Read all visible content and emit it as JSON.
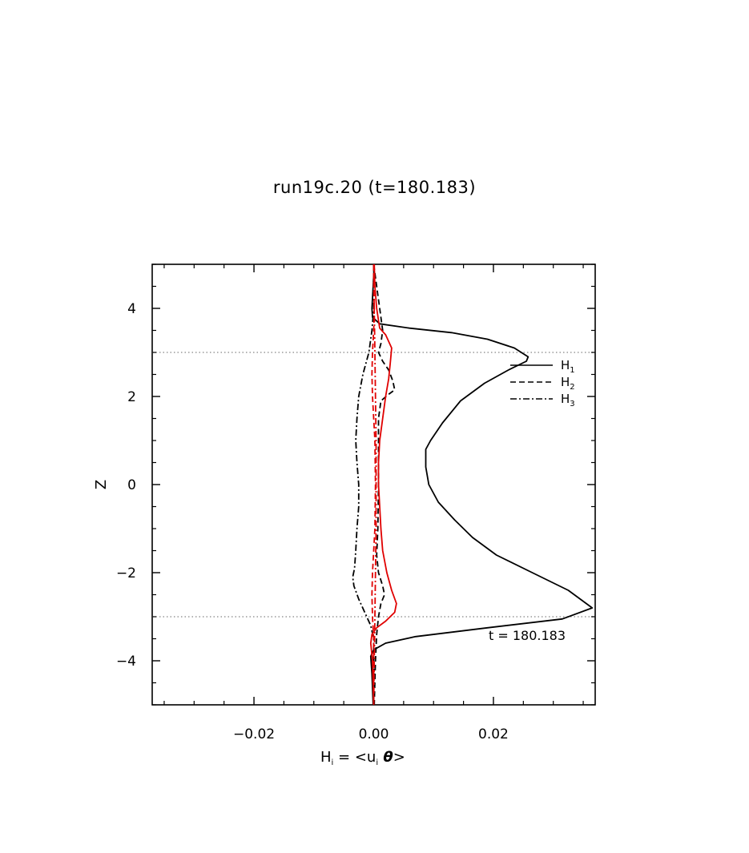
{
  "chart_data": {
    "type": "line",
    "title": "run19c.20 (t=180.183)",
    "xlabel": "H_i = <u_i θ>",
    "xlabel_parts": {
      "main": "H",
      "sub": "i",
      "rest": " = <u",
      "sub2": "i",
      "theta": " θ",
      "end": ">"
    },
    "ylabel": "Z",
    "xlim": [
      -0.037,
      0.037
    ],
    "ylim": [
      -5,
      5
    ],
    "x_ticks": [
      -0.02,
      0.0,
      0.02
    ],
    "x_tick_labels": [
      "−0.02",
      "0.00",
      "0.02"
    ],
    "y_ticks": [
      -4,
      -2,
      0,
      2,
      4
    ],
    "y_tick_labels": [
      "−4",
      "−2",
      "0",
      "2",
      "4"
    ],
    "reference_lines_z": [
      3,
      -3
    ],
    "annotation": "t = 180.183",
    "legend_placement": "upper-right inside",
    "legend": [
      {
        "label": "H",
        "sub": "1",
        "style": "solid"
      },
      {
        "label": "H",
        "sub": "2",
        "style": "dashed"
      },
      {
        "label": "H",
        "sub": "3",
        "style": "dashdot"
      }
    ],
    "series": [
      {
        "name": "H1",
        "color": "#000000",
        "style": "solid",
        "points": [
          [
            0.0001,
            5.0
          ],
          [
            -0.0001,
            4.5
          ],
          [
            -0.0003,
            4.0
          ],
          [
            -0.0002,
            3.8
          ],
          [
            0.001,
            3.65
          ],
          [
            0.006,
            3.55
          ],
          [
            0.013,
            3.45
          ],
          [
            0.019,
            3.3
          ],
          [
            0.0235,
            3.1
          ],
          [
            0.0258,
            2.9
          ],
          [
            0.0255,
            2.8
          ],
          [
            0.0225,
            2.6
          ],
          [
            0.0185,
            2.3
          ],
          [
            0.0145,
            1.9
          ],
          [
            0.0115,
            1.4
          ],
          [
            0.0095,
            1.0
          ],
          [
            0.0087,
            0.8
          ],
          [
            0.0087,
            0.4
          ],
          [
            0.0092,
            0.0
          ],
          [
            0.0108,
            -0.4
          ],
          [
            0.0135,
            -0.8
          ],
          [
            0.0165,
            -1.2
          ],
          [
            0.0205,
            -1.6
          ],
          [
            0.0265,
            -2.0
          ],
          [
            0.0325,
            -2.4
          ],
          [
            0.0365,
            -2.8
          ],
          [
            0.0315,
            -3.05
          ],
          [
            0.019,
            -3.25
          ],
          [
            0.007,
            -3.45
          ],
          [
            0.002,
            -3.6
          ],
          [
            0.0,
            -3.75
          ],
          [
            -0.0005,
            -3.9
          ],
          [
            -0.0003,
            -4.3
          ],
          [
            -0.0001,
            -5.0
          ]
        ]
      },
      {
        "name": "H2",
        "color": "#000000",
        "style": "dashed",
        "points": [
          [
            0.0,
            5.0
          ],
          [
            0.0005,
            4.5
          ],
          [
            0.001,
            4.0
          ],
          [
            0.0015,
            3.5
          ],
          [
            0.0012,
            3.2
          ],
          [
            0.0008,
            3.0
          ],
          [
            0.0015,
            2.8
          ],
          [
            0.0025,
            2.6
          ],
          [
            0.0032,
            2.35
          ],
          [
            0.0035,
            2.15
          ],
          [
            0.0025,
            2.05
          ],
          [
            0.0012,
            1.9
          ],
          [
            0.0008,
            1.5
          ],
          [
            0.0008,
            1.0
          ],
          [
            0.0008,
            0.0
          ],
          [
            0.0007,
            -1.0
          ],
          [
            0.0005,
            -1.6
          ],
          [
            0.0008,
            -2.0
          ],
          [
            0.0015,
            -2.3
          ],
          [
            0.0018,
            -2.5
          ],
          [
            0.0012,
            -2.7
          ],
          [
            0.0008,
            -3.0
          ],
          [
            0.0005,
            -3.4
          ],
          [
            0.0003,
            -4.0
          ],
          [
            0.0001,
            -5.0
          ]
        ]
      },
      {
        "name": "H3",
        "color": "#000000",
        "style": "dashdot",
        "points": [
          [
            0.0,
            5.0
          ],
          [
            0.0,
            4.5
          ],
          [
            0.0,
            4.0
          ],
          [
            -0.0003,
            3.5
          ],
          [
            -0.0008,
            3.0
          ],
          [
            -0.0018,
            2.5
          ],
          [
            -0.0025,
            2.0
          ],
          [
            -0.0028,
            1.5
          ],
          [
            -0.003,
            1.0
          ],
          [
            -0.0028,
            0.5
          ],
          [
            -0.0025,
            0.0
          ],
          [
            -0.0025,
            -0.5
          ],
          [
            -0.0028,
            -1.0
          ],
          [
            -0.003,
            -1.5
          ],
          [
            -0.0032,
            -1.9
          ],
          [
            -0.0035,
            -2.1
          ],
          [
            -0.0033,
            -2.3
          ],
          [
            -0.0025,
            -2.6
          ],
          [
            -0.0015,
            -2.9
          ],
          [
            -0.0005,
            -3.2
          ],
          [
            0.0,
            -3.5
          ],
          [
            0.0,
            -4.0
          ],
          [
            0.0,
            -5.0
          ]
        ]
      },
      {
        "name": "",
        "color": "#e00000",
        "style": "solid",
        "points": [
          [
            0.0001,
            5.0
          ],
          [
            0.0002,
            4.5
          ],
          [
            0.0005,
            4.0
          ],
          [
            0.001,
            3.55
          ],
          [
            0.002,
            3.4
          ],
          [
            0.003,
            3.1
          ],
          [
            0.0028,
            2.8
          ],
          [
            0.0025,
            2.4
          ],
          [
            0.002,
            2.0
          ],
          [
            0.0015,
            1.5
          ],
          [
            0.001,
            1.0
          ],
          [
            0.0008,
            0.5
          ],
          [
            0.0008,
            0.0
          ],
          [
            0.001,
            -0.5
          ],
          [
            0.0012,
            -1.0
          ],
          [
            0.0015,
            -1.5
          ],
          [
            0.0022,
            -2.0
          ],
          [
            0.003,
            -2.4
          ],
          [
            0.0038,
            -2.7
          ],
          [
            0.0035,
            -2.9
          ],
          [
            0.002,
            -3.1
          ],
          [
            0.0005,
            -3.25
          ],
          [
            -0.0003,
            -3.4
          ],
          [
            -0.0005,
            -3.6
          ],
          [
            -0.0002,
            -4.0
          ],
          [
            0.0,
            -5.0
          ]
        ]
      },
      {
        "name": "",
        "color": "#e00000",
        "style": "dashed",
        "points": [
          [
            0.0,
            5.0
          ],
          [
            0.0,
            4.5
          ],
          [
            0.0001,
            4.0
          ],
          [
            0.0,
            3.5
          ],
          [
            -0.0002,
            3.0
          ],
          [
            -0.0003,
            2.5
          ],
          [
            -0.0002,
            2.0
          ],
          [
            0.0,
            1.5
          ],
          [
            0.0002,
            1.0
          ],
          [
            0.0003,
            0.0
          ],
          [
            0.0002,
            -1.0
          ],
          [
            0.0,
            -1.5
          ],
          [
            -0.0002,
            -2.0
          ],
          [
            -0.0003,
            -2.5
          ],
          [
            -0.0002,
            -3.0
          ],
          [
            0.0,
            -3.5
          ],
          [
            0.0,
            -4.0
          ],
          [
            0.0,
            -5.0
          ]
        ]
      },
      {
        "name": "",
        "color": "#e00000",
        "style": "dashdot",
        "points": [
          [
            0.0,
            5.0
          ],
          [
            0.0001,
            4.0
          ],
          [
            0.0002,
            3.0
          ],
          [
            0.0003,
            2.0
          ],
          [
            0.0004,
            1.0
          ],
          [
            0.0004,
            0.0
          ],
          [
            0.0004,
            -1.0
          ],
          [
            0.0003,
            -2.0
          ],
          [
            0.0002,
            -3.0
          ],
          [
            0.0001,
            -4.0
          ],
          [
            0.0,
            -5.0
          ]
        ]
      }
    ]
  }
}
